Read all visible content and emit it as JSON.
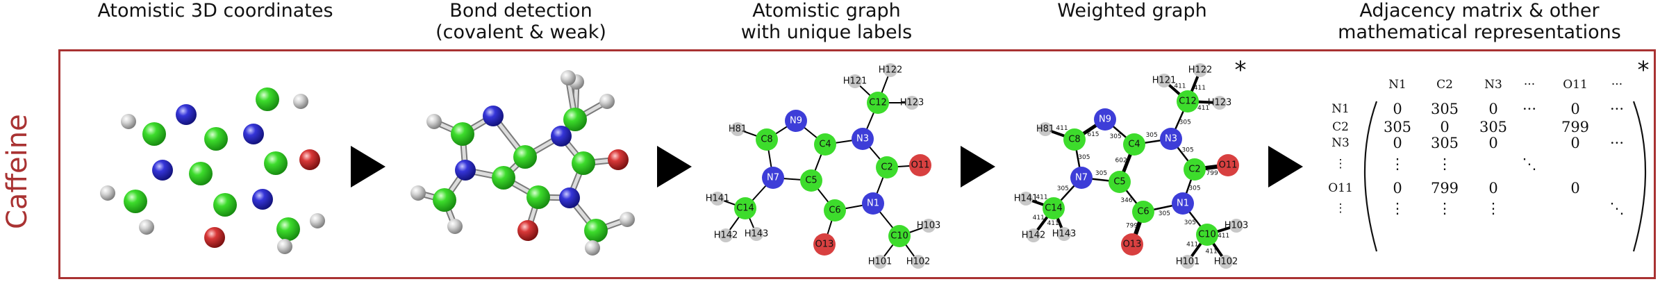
{
  "titles": {
    "t1": [
      "Atomistic 3D coordinates"
    ],
    "t2": [
      "Bond detection",
      "(covalent & weak)"
    ],
    "t3": [
      "Atomistic graph",
      "with unique labels"
    ],
    "t4": [
      "Weighted graph"
    ],
    "t5": [
      "Adjacency matrix & other",
      "mathematical representations"
    ]
  },
  "side_label": "Caffeine",
  "colors": {
    "frame": "#a93232",
    "carbon": "#3ddc2c",
    "nitrogen": "#3d3dd8",
    "oxygen": "#d84040",
    "hydrogen": "#c8c8c8"
  },
  "atoms": [
    {
      "id": "N1",
      "el": "N"
    },
    {
      "id": "C2",
      "el": "C"
    },
    {
      "id": "N3",
      "el": "N"
    },
    {
      "id": "C4",
      "el": "C"
    },
    {
      "id": "C5",
      "el": "C"
    },
    {
      "id": "C6",
      "el": "C"
    },
    {
      "id": "N7",
      "el": "N"
    },
    {
      "id": "C8",
      "el": "C"
    },
    {
      "id": "N9",
      "el": "N"
    },
    {
      "id": "C10",
      "el": "C"
    },
    {
      "id": "O11",
      "el": "O"
    },
    {
      "id": "C12",
      "el": "C"
    },
    {
      "id": "O13",
      "el": "O"
    },
    {
      "id": "C14",
      "el": "C"
    },
    {
      "id": "H81",
      "el": "H"
    },
    {
      "id": "H101",
      "el": "H"
    },
    {
      "id": "H102",
      "el": "H"
    },
    {
      "id": "H103",
      "el": "H"
    },
    {
      "id": "H121",
      "el": "H"
    },
    {
      "id": "H122",
      "el": "H"
    },
    {
      "id": "H123",
      "el": "H"
    },
    {
      "id": "H141",
      "el": "H"
    },
    {
      "id": "H142",
      "el": "H"
    },
    {
      "id": "H143",
      "el": "H"
    }
  ],
  "bonds": [
    {
      "a": "N1",
      "b": "C2",
      "w": "305"
    },
    {
      "a": "C2",
      "b": "N3",
      "w": "305"
    },
    {
      "a": "N3",
      "b": "C4",
      "w": "305"
    },
    {
      "a": "C4",
      "b": "C5",
      "w": "602"
    },
    {
      "a": "C5",
      "b": "C6",
      "w": "346"
    },
    {
      "a": "C6",
      "b": "N1",
      "w": "305"
    },
    {
      "a": "C5",
      "b": "N7",
      "w": "305"
    },
    {
      "a": "N7",
      "b": "C8",
      "w": "305"
    },
    {
      "a": "C8",
      "b": "N9",
      "w": "615"
    },
    {
      "a": "N9",
      "b": "C4",
      "w": "305"
    },
    {
      "a": "N1",
      "b": "C10",
      "w": "305"
    },
    {
      "a": "C2",
      "b": "O11",
      "w": "799"
    },
    {
      "a": "N3",
      "b": "C12",
      "w": "305"
    },
    {
      "a": "C6",
      "b": "O13",
      "w": "799"
    },
    {
      "a": "N7",
      "b": "C14",
      "w": "305"
    },
    {
      "a": "C8",
      "b": "H81",
      "w": "411"
    },
    {
      "a": "C10",
      "b": "H101",
      "w": "411"
    },
    {
      "a": "C10",
      "b": "H102",
      "w": "411"
    },
    {
      "a": "C10",
      "b": "H103",
      "w": "411"
    },
    {
      "a": "C12",
      "b": "H121",
      "w": "411"
    },
    {
      "a": "C12",
      "b": "H122",
      "w": "411"
    },
    {
      "a": "C12",
      "b": "H123",
      "w": "411"
    },
    {
      "a": "C14",
      "b": "H141",
      "w": "411"
    },
    {
      "a": "C14",
      "b": "H142",
      "w": "411"
    },
    {
      "a": "C14",
      "b": "H143",
      "w": "411"
    }
  ],
  "star": "*",
  "matrix": {
    "col_headers": [
      "N1",
      "C2",
      "N3",
      "···",
      "O11",
      "···"
    ],
    "row_headers": [
      "N1",
      "C2",
      "N3",
      "⋮",
      "O11",
      "⋮"
    ],
    "rows": [
      [
        "0",
        "305",
        "0",
        "···",
        "0",
        "···"
      ],
      [
        "305",
        "0",
        "305",
        "",
        "799",
        ""
      ],
      [
        "0",
        "305",
        "0",
        "",
        "0",
        "···"
      ],
      [
        "⋮",
        "⋮",
        "",
        "⋱",
        "",
        ""
      ],
      [
        "0",
        "799",
        "0",
        "",
        "0",
        ""
      ],
      [
        "⋮",
        "⋮",
        "⋮",
        "",
        "",
        "⋱"
      ]
    ]
  }
}
